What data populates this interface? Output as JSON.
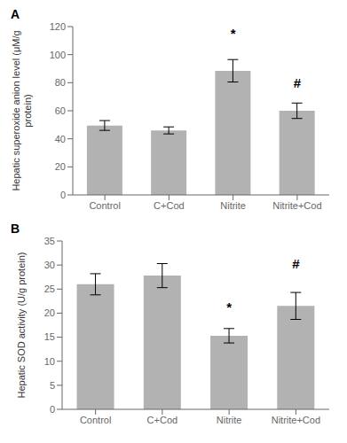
{
  "chart_data": [
    {
      "type": "bar",
      "title": "A",
      "categories": [
        "Control",
        "C+Cod",
        "Nitrite",
        "Nitrite+Cod"
      ],
      "values": [
        49.5,
        46.0,
        88.5,
        60.0
      ],
      "errors": [
        3.5,
        2.5,
        8.0,
        5.5
      ],
      "ylabel": "Hepatic superoxide anion level (μM/g\nprotein)",
      "ylim": [
        0,
        120
      ],
      "yticks": [
        0,
        20,
        40,
        60,
        80,
        100,
        120
      ],
      "color": "#b2b2b2",
      "grid": false,
      "annotations": [
        {
          "text": "*",
          "x": "Nitrite",
          "y": 108.5
        },
        {
          "text": "#",
          "x": "Nitrite+Cod",
          "y": 73.5
        }
      ]
    },
    {
      "type": "bar",
      "title": "B",
      "categories": [
        "Control",
        "C+Cod",
        "Nitrite",
        "Nitrite+Cod"
      ],
      "values": [
        26.0,
        27.8,
        15.3,
        21.5
      ],
      "errors": [
        2.2,
        2.5,
        1.5,
        2.8
      ],
      "ylabel": "Hepatic SOD activity (U/g protein)",
      "ylim": [
        0,
        35
      ],
      "yticks": [
        0,
        5,
        10,
        15,
        20,
        25,
        30,
        35
      ],
      "color": "#b2b2b2",
      "grid": false,
      "annotations": [
        {
          "text": "*",
          "x": "Nitrite",
          "y": 19.3
        },
        {
          "text": "#",
          "x": "Nitrite+Cod",
          "y": 28.3
        }
      ]
    }
  ]
}
